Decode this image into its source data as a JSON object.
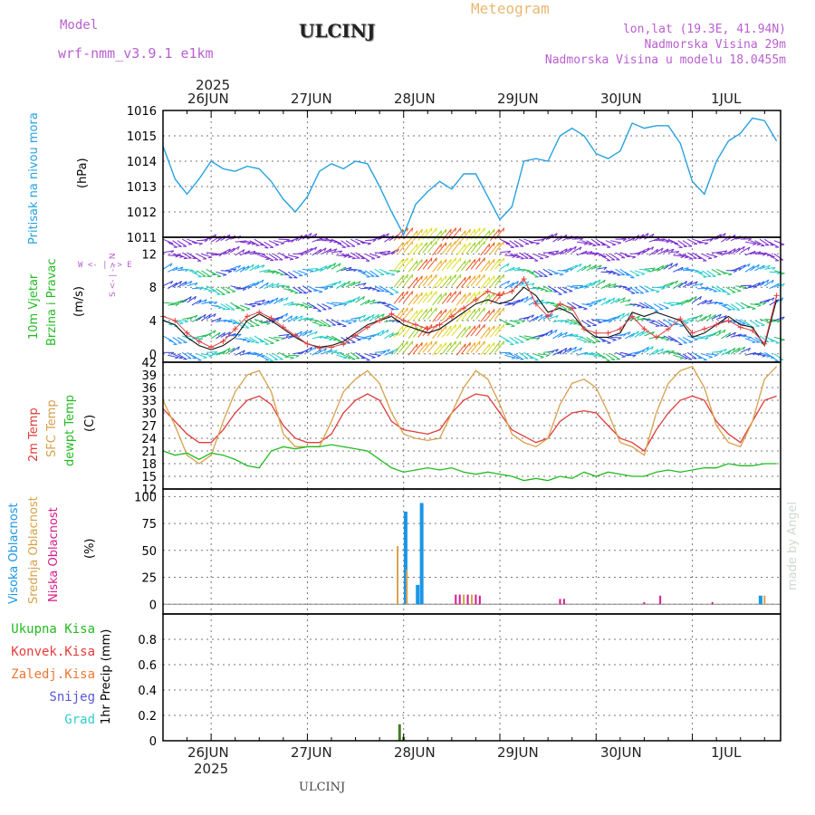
{
  "header": {
    "model_label": "Model",
    "model_name": "wrf-nmm_v3.9.1 e1km",
    "station": "ULCINJ",
    "product": "Meteogram",
    "coords": "lon,lat (19.3E, 41.94N)",
    "elevation": "Nadmorska Visina 29m",
    "model_elevation": "Nadmorska Visina u modelu 18.0455m"
  },
  "top_axis": {
    "year": "2025",
    "days": [
      "26JUN",
      "27JUN",
      "28JUN",
      "29JUN",
      "30JUN",
      "1JUL"
    ]
  },
  "bottom_axis": {
    "year": "2025",
    "days": [
      "26JUN",
      "27JUN",
      "28JUN",
      "29JUN",
      "30JUN",
      "1JUL"
    ]
  },
  "footer": {
    "station": "ULCINJ",
    "credit": "made by Angel"
  },
  "panels": {
    "pressure": {
      "title": "Pritisak na nivou mora",
      "unit": "(hPa)",
      "ticks": [
        "1011",
        "1012",
        "1013",
        "1014",
        "1015",
        "1016"
      ]
    },
    "wind": {
      "title1": "10m Vjetar",
      "title2": "Brzina i Pravac",
      "unit": "(m/s)",
      "compass": "W <- | -> E",
      "compass_ns": "S <- | -> N",
      "ticks": [
        "0",
        "4",
        "8",
        "12"
      ]
    },
    "temp": {
      "title1": "2m Temp",
      "title2": "SFC Temp",
      "title3": "dewpt Temp",
      "unit": "(C)",
      "ticks": [
        "12",
        "15",
        "18",
        "21",
        "24",
        "27",
        "30",
        "33",
        "36",
        "39",
        "42"
      ]
    },
    "cloud": {
      "title1": "Visoka Oblacnost",
      "title2": "Srednja Oblacnost",
      "title3": "Niska Oblacnost",
      "unit": "(%)",
      "ticks": [
        "0",
        "25",
        "50",
        "75",
        "100"
      ]
    },
    "precip": {
      "labels": [
        "Ukupna Kisa",
        "Konvek.Kisa",
        "Zaledj.Kisa",
        "Snijeg",
        "Grad"
      ],
      "unit": "1hr Precip (mm)",
      "ticks": [
        "0",
        "0.2",
        "0.4",
        "0.6",
        "0.8"
      ]
    }
  },
  "colors": {
    "model": "#b95fd0",
    "meteogram": "#e8b870",
    "pressure": "#27a2e0",
    "wind_green": "#22bb22",
    "temp2m": "#e03c3c",
    "sfc": "#d8a04c",
    "dewpt": "#22bb22",
    "high_cloud": "#1a96e6",
    "mid_cloud": "#d7a24a",
    "low_cloud": "#d61b8a",
    "ukupna": "#22bb22",
    "konvek": "#e83a3a",
    "zaledj": "#ee7733",
    "snijeg": "#5555dd",
    "grad": "#33cccc"
  },
  "chart_data": [
    {
      "type": "line",
      "title": "Pritisak na nivou mora",
      "ylabel": "(hPa)",
      "x_hours": [
        0,
        3,
        6,
        9,
        12,
        15,
        18,
        21,
        24,
        27,
        30,
        33,
        36,
        39,
        42,
        45,
        48,
        51,
        54,
        57,
        60,
        63,
        66,
        69,
        72,
        75,
        78,
        81,
        84,
        87,
        90,
        93,
        96,
        99,
        102,
        105,
        108,
        111,
        114,
        117,
        120,
        123,
        126,
        129,
        132,
        135,
        138,
        141,
        144,
        147,
        150,
        153
      ],
      "x_unit": "hours from 25JUN 12:00",
      "values": [
        1014.6,
        1013.3,
        1012.7,
        1013.3,
        1014.0,
        1013.7,
        1013.6,
        1013.8,
        1013.7,
        1013.2,
        1012.5,
        1012.0,
        1012.6,
        1013.6,
        1013.9,
        1013.7,
        1014.0,
        1013.9,
        1013.0,
        1012.0,
        1011.1,
        1012.3,
        1012.8,
        1013.2,
        1012.9,
        1013.5,
        1013.5,
        1012.6,
        1011.7,
        1012.2,
        1014.0,
        1014.1,
        1014.0,
        1015.0,
        1015.3,
        1015.0,
        1014.3,
        1014.1,
        1014.4,
        1015.5,
        1015.3,
        1015.4,
        1015.4,
        1014.7,
        1013.2,
        1012.7,
        1014.0,
        1014.8,
        1015.1,
        1015.7,
        1015.6,
        1014.8
      ],
      "ylim": [
        1011,
        1016
      ]
    },
    {
      "type": "line",
      "title": "10m Vjetar Brzina i Pravac",
      "ylabel": "(m/s)",
      "x_hours": [
        0,
        3,
        6,
        9,
        12,
        15,
        18,
        21,
        24,
        27,
        30,
        33,
        36,
        39,
        42,
        45,
        48,
        51,
        54,
        57,
        60,
        63,
        66,
        69,
        72,
        75,
        78,
        81,
        84,
        87,
        90,
        93,
        96,
        99,
        102,
        105,
        108,
        111,
        114,
        117,
        120,
        123,
        126,
        129,
        132,
        135,
        138,
        141,
        144,
        147,
        150,
        153
      ],
      "series": [
        {
          "name": "",
          "values": [
            4,
            3.5,
            2,
            1,
            0.5,
            1,
            2,
            4,
            4.8,
            4,
            3,
            2,
            1.2,
            0.8,
            1,
            1.5,
            2.5,
            3.5,
            4,
            4.5,
            3.5,
            3,
            2.5,
            3,
            4,
            5,
            6,
            6.5,
            6,
            6.5,
            8,
            7,
            5,
            5.5,
            4.8,
            3,
            2,
            2,
            2.5,
            5,
            4.5,
            5,
            4.5,
            4,
            2,
            2.5,
            3.5,
            4.5,
            3.5,
            3.2,
            1,
            6.5
          ]
        },
        {
          "name": "",
          "values": [
            4.5,
            4,
            2.5,
            1.5,
            0.8,
            1.5,
            3,
            4.5,
            5,
            4.3,
            3.2,
            2.2,
            1.2,
            0.7,
            0.8,
            1.2,
            2.2,
            3.2,
            4,
            4.8,
            4,
            3.5,
            3,
            3.5,
            4.5,
            5.5,
            6.5,
            7.5,
            7,
            7.5,
            9,
            6,
            4.5,
            6,
            5.5,
            3,
            2.5,
            2.5,
            3,
            4.5,
            3,
            2,
            3,
            4.2,
            2.5,
            3,
            3.5,
            4,
            3.2,
            2.8,
            1.2,
            7
          ]
        }
      ],
      "ylim": [
        -1,
        14
      ]
    },
    {
      "type": "line",
      "title": "Temperature",
      "ylabel": "(C)",
      "x_hours": [
        0,
        3,
        6,
        9,
        12,
        15,
        18,
        21,
        24,
        27,
        30,
        33,
        36,
        39,
        42,
        45,
        48,
        51,
        54,
        57,
        60,
        63,
        66,
        69,
        72,
        75,
        78,
        81,
        84,
        87,
        90,
        93,
        96,
        99,
        102,
        105,
        108,
        111,
        114,
        117,
        120,
        123,
        126,
        129,
        132,
        135,
        138,
        141,
        144,
        147,
        150,
        153
      ],
      "series": [
        {
          "name": "2m Temp",
          "values": [
            31,
            28,
            25,
            23,
            23,
            26,
            30,
            33,
            34,
            32,
            27,
            24,
            23,
            23,
            25,
            30,
            33,
            34.5,
            33,
            28,
            26,
            25.5,
            25,
            26,
            30,
            33,
            34.5,
            34,
            30,
            26,
            24.5,
            23,
            24,
            28,
            30,
            30.5,
            30,
            27,
            24,
            23,
            21,
            26,
            30,
            33,
            34,
            33,
            28,
            25,
            23,
            28,
            33,
            34
          ]
        },
        {
          "name": "SFC Temp",
          "values": [
            33,
            27,
            20,
            18,
            20,
            28,
            35,
            39,
            40,
            35,
            25,
            22,
            22,
            22,
            28,
            35,
            38,
            40,
            37,
            30,
            25,
            24,
            23.5,
            24,
            30,
            36,
            40,
            38,
            32,
            25,
            23,
            22,
            24,
            32,
            37,
            38,
            36,
            30,
            23,
            22,
            20,
            30,
            37,
            40,
            41,
            36,
            27,
            23,
            22,
            28,
            38,
            41
          ]
        },
        {
          "name": "dewpt Temp",
          "values": [
            21,
            20,
            20.5,
            19,
            20.5,
            20,
            19,
            17.5,
            17,
            21,
            22,
            21.5,
            22,
            22,
            22.5,
            22,
            21.5,
            21,
            19,
            17,
            16,
            16.5,
            17,
            16.5,
            17,
            16,
            15.5,
            16,
            15.5,
            15,
            14,
            14.5,
            14,
            15,
            14.5,
            16,
            15,
            16,
            15.5,
            15,
            15,
            16,
            16.5,
            16,
            16.5,
            17,
            17,
            18,
            17.5,
            17.5,
            18,
            18
          ]
        }
      ],
      "ylim": [
        12,
        42
      ]
    },
    {
      "type": "bar",
      "title": "Oblacnost",
      "ylabel": "(%)",
      "x_unit": "hours from 25JUN 12:00",
      "series": [
        {
          "name": "Visoka Oblacnost",
          "points": [
            [
              60.5,
              86
            ],
            [
              63.5,
              18
            ],
            [
              64.5,
              94
            ],
            [
              149,
              8
            ]
          ]
        },
        {
          "name": "Srednja Oblacnost",
          "points": [
            [
              58.5,
              54
            ],
            [
              60.8,
              32
            ],
            [
              75,
              9
            ],
            [
              77,
              9
            ],
            [
              150,
              8
            ]
          ]
        },
        {
          "name": "Niska Oblacnost",
          "points": [
            [
              73,
              9
            ],
            [
              74,
              9
            ],
            [
              76,
              9
            ],
            [
              78,
              9
            ],
            [
              79,
              8
            ],
            [
              99,
              5
            ],
            [
              100,
              5
            ],
            [
              120,
              2
            ],
            [
              124,
              8
            ],
            [
              137,
              2
            ]
          ]
        }
      ],
      "ylim": [
        0,
        100
      ]
    },
    {
      "type": "bar",
      "title": "1hr Precip",
      "ylabel": "1hr Precip (mm)",
      "series": [
        {
          "name": "Ukupna Kisa",
          "points": [
            [
              59,
              0.13
            ],
            [
              60,
              0.03
            ]
          ]
        }
      ],
      "ylim": [
        0,
        1
      ]
    }
  ]
}
